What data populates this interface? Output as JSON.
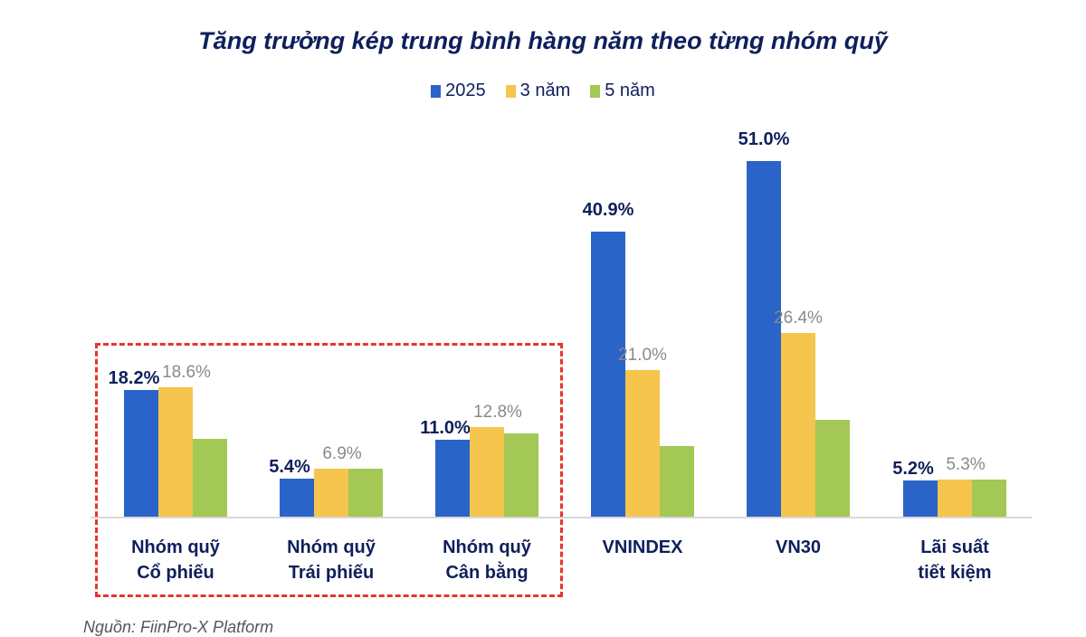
{
  "chart_data": {
    "type": "bar",
    "title": "Tăng trưởng kép trung bình hàng năm theo từng nhóm quỹ",
    "xlabel": "",
    "ylabel": "",
    "ylim": [
      0,
      51
    ],
    "grid": false,
    "legend_position": "top",
    "categories": [
      "Nhóm quỹ Cổ phiếu",
      "Nhóm quỹ Trái phiếu",
      "Nhóm quỹ Cân bằng",
      "VNINDEX",
      "VN30",
      "Lãi suất tiết kiệm"
    ],
    "category_lines": [
      [
        "Nhóm quỹ",
        "Cổ phiếu"
      ],
      [
        "Nhóm quỹ",
        "Trái phiếu"
      ],
      [
        "Nhóm quỹ",
        "Cân bằng"
      ],
      [
        "VNINDEX",
        ""
      ],
      [
        "VN30",
        ""
      ],
      [
        "Lãi suất",
        "tiết kiệm"
      ]
    ],
    "series": [
      {
        "name": "2025",
        "color": "#2b64c8",
        "values": [
          18.2,
          5.4,
          11.0,
          40.9,
          51.0,
          5.2
        ],
        "labels": [
          "18.2%",
          "5.4%",
          "11.0%",
          "40.9%",
          "51.0%",
          "5.2%"
        ]
      },
      {
        "name": "3 năm",
        "color": "#f5c54e",
        "values": [
          18.6,
          6.9,
          12.8,
          21.0,
          26.4,
          5.3
        ],
        "labels": [
          "18.6%",
          "6.9%",
          "12.8%",
          "21.0%",
          "26.4%",
          "5.3%"
        ]
      },
      {
        "name": "5 năm",
        "color": "#a3c855",
        "values": [
          11.2,
          6.9,
          11.9,
          10.1,
          13.9,
          5.3
        ],
        "labels": [
          "",
          "",
          "",
          "",
          "",
          ""
        ]
      }
    ],
    "annotations": [
      "Dashed red box highlighting the three fund-group categories"
    ]
  },
  "title": "Tăng trưởng kép trung bình hàng năm theo từng nhóm quỹ",
  "legend": [
    {
      "label": "2025",
      "color": "#2b64c8"
    },
    {
      "label": "3 năm",
      "color": "#f5c54e"
    },
    {
      "label": "5 năm",
      "color": "#a3c855"
    }
  ],
  "source": "Nguồn: FiinPro-X Platform"
}
